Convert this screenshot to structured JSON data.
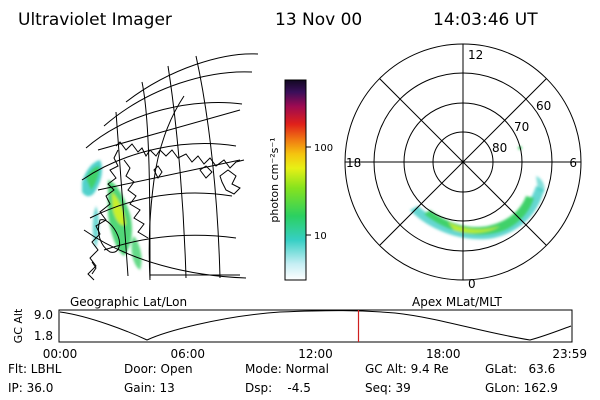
{
  "header": {
    "instrument": "Ultraviolet Imager",
    "date": "13 Nov 00",
    "time": "14:03:46 UT"
  },
  "colorbar": {
    "label": "photon cm⁻²s⁻¹",
    "ticks": [
      "100",
      "10"
    ]
  },
  "panels": {
    "left_caption": "Geographic Lat/Lon",
    "right_caption": "Apex MLat/MLT"
  },
  "polar_plot": {
    "mlt_labels": {
      "top": "12",
      "left": "18",
      "right": "6",
      "bottom": "0"
    },
    "lat_labels": [
      "60",
      "70",
      "80"
    ]
  },
  "timeline": {
    "ylabel": "GC Alt",
    "y_ticks": [
      "9.0",
      "1.8"
    ],
    "x_ticks": [
      "00:00",
      "06:00",
      "12:00",
      "18:00",
      "23:59"
    ],
    "current_marker": "14:03:46"
  },
  "info": {
    "flt": "Flt: LBHL",
    "ip": "IP: 36.0",
    "door": "Door: Open",
    "gain": "Gain: 13",
    "mode": "Mode: Normal",
    "dsp": "Dsp:    -4.5",
    "gc_alt": "GC Alt: 9.4 Re",
    "seq": "Seq: 39",
    "glat": "GLat:   63.6",
    "glon": "GLon: 162.9"
  },
  "colors": {
    "aurora_core": "#3fd16a",
    "aurora_edge": "#33c9c2",
    "aurora_bright": "#c8f02a",
    "current_time_marker": "#d02020"
  }
}
